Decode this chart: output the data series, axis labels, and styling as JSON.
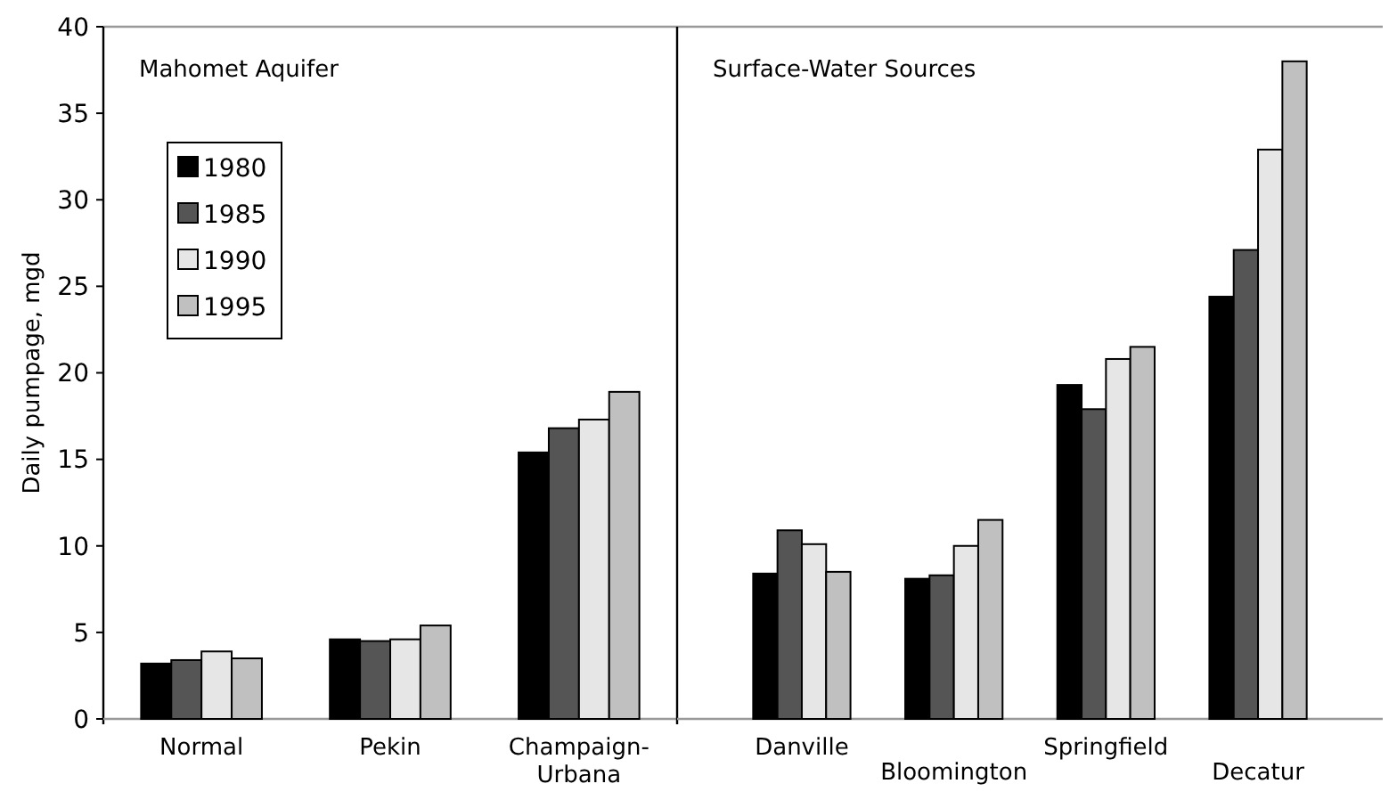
{
  "chart_data": [
    {
      "type": "bar",
      "title": "Mahomet Aquifer",
      "ylabel": "Daily pumpage, mgd",
      "categories": [
        "Normal",
        "Pekin",
        "Champaign-Urbana"
      ],
      "ylim": [
        0,
        40
      ],
      "yticks": [
        0,
        5,
        10,
        15,
        20,
        25,
        30,
        35,
        40
      ],
      "legend": "top left",
      "series": [
        {
          "name": "1980",
          "color": "#000000",
          "values": [
            3.2,
            4.6,
            15.4
          ]
        },
        {
          "name": "1985",
          "color": "#555555",
          "values": [
            3.4,
            4.5,
            16.8
          ]
        },
        {
          "name": "1990",
          "color": "#e6e6e6",
          "values": [
            3.9,
            4.6,
            17.3
          ]
        },
        {
          "name": "1995",
          "color": "#c0c0c0",
          "values": [
            3.5,
            5.4,
            18.9
          ]
        }
      ]
    },
    {
      "type": "bar",
      "title": "Surface-Water Sources",
      "categories": [
        "Danville",
        "Bloomington",
        "Springfield",
        "Decatur"
      ],
      "ylim": [
        0,
        40
      ],
      "yticks": [
        0,
        5,
        10,
        15,
        20,
        25,
        30,
        35,
        40
      ],
      "tick_labels": "x",
      "series": [
        {
          "color": "#000000",
          "values": [
            8.4,
            8.1,
            19.3,
            24.4
          ]
        },
        {
          "color": "#555555",
          "values": [
            10.9,
            8.3,
            17.9,
            27.1
          ]
        },
        {
          "color": "#e6e6e6",
          "values": [
            10.1,
            10.0,
            20.8,
            32.9
          ]
        },
        {
          "color": "#c0c0c0",
          "values": [
            8.5,
            11.5,
            21.5,
            38.0
          ]
        }
      ]
    }
  ]
}
